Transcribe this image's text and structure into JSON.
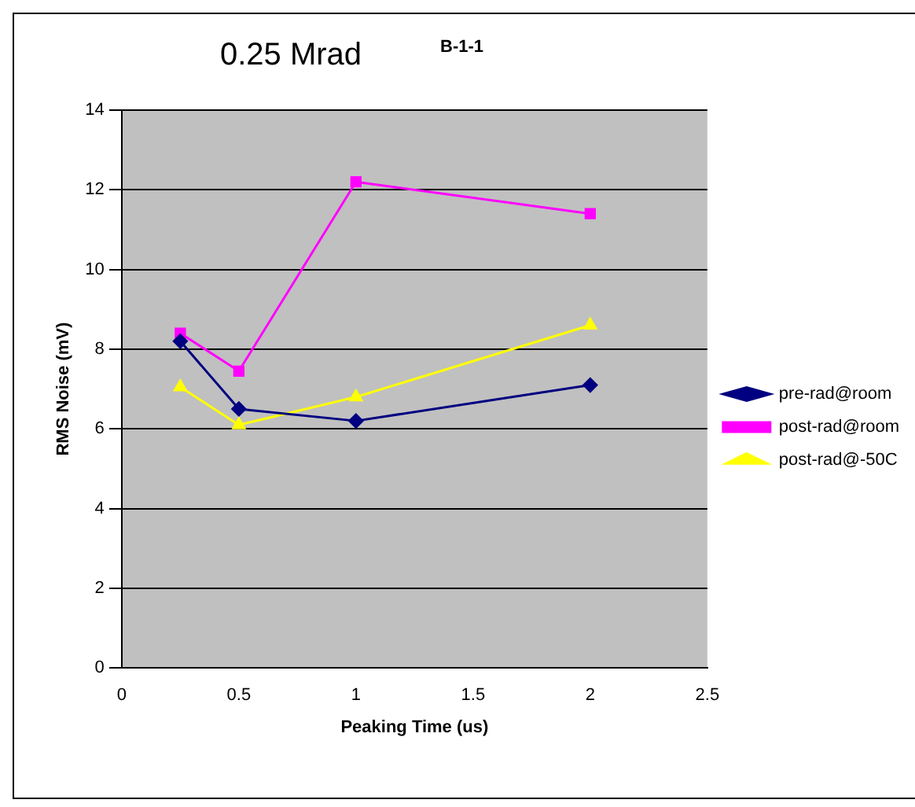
{
  "chart_data": {
    "type": "line",
    "title": "0.25 Mrad",
    "subtitle": "B-1-1",
    "xlabel": "Peaking Time (us)",
    "ylabel": "RMS Noise (mV)",
    "x": [
      0.25,
      0.5,
      1,
      2
    ],
    "series": [
      {
        "name": "pre-rad@room",
        "color": "#000080",
        "marker": "diamond",
        "values": [
          8.2,
          6.5,
          6.2,
          7.1
        ]
      },
      {
        "name": "post-rad@room",
        "color": "#ff00ff",
        "marker": "square",
        "values": [
          8.4,
          7.45,
          12.2,
          11.4
        ]
      },
      {
        "name": "post-rad@-50C",
        "color": "#ffff00",
        "marker": "triangle",
        "values": [
          7.05,
          6.1,
          6.8,
          8.6
        ]
      }
    ],
    "xlim": [
      0,
      2.5
    ],
    "xticks": [
      0,
      0.5,
      1,
      1.5,
      2,
      2.5
    ],
    "ylim": [
      0,
      14
    ],
    "yticks": [
      0,
      2,
      4,
      6,
      8,
      10,
      12,
      14
    ],
    "grid": "y",
    "legend": "right",
    "line_style": "solid"
  }
}
